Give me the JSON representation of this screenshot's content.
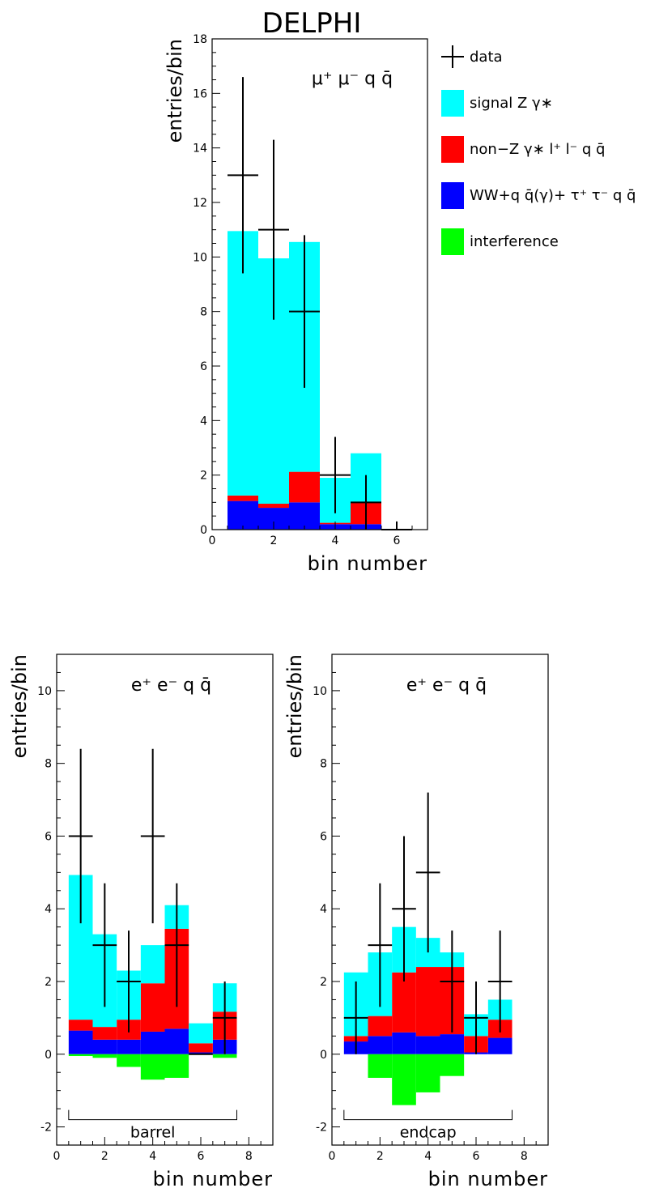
{
  "experiment": "DELPHI",
  "legend": {
    "items": [
      {
        "label": "data",
        "kind": "cross"
      },
      {
        "label": "signal Z γ∗",
        "color": "#00ffff"
      },
      {
        "label": "non−Z γ∗  l⁺ l⁻ q q̄",
        "color": "#ff0000"
      },
      {
        "label": "WW+q q̄(γ)+ τ⁺ τ⁻ q q̄",
        "color": "#0000ff"
      },
      {
        "label": "interference",
        "color": "#00ff00"
      }
    ]
  },
  "colors": {
    "signal": "#00ffff",
    "nonZ": "#ff0000",
    "ww": "#0000ff",
    "interference": "#00ff00"
  },
  "chart_data": [
    {
      "type": "bar",
      "stacked": true,
      "title": "μ⁺ μ⁻ q q̄",
      "xlabel": "bin number",
      "ylabel": "entries/bin",
      "xlim": [
        0,
        7
      ],
      "ylim": [
        0,
        18
      ],
      "xticks": [
        0,
        2,
        4,
        6
      ],
      "yticks": [
        0,
        2,
        4,
        6,
        8,
        10,
        12,
        14,
        16,
        18
      ],
      "bins": [
        1,
        2,
        3,
        4,
        5
      ],
      "series": [
        {
          "key": "ww",
          "values": [
            1.05,
            0.8,
            1.0,
            0.2,
            0.2
          ]
        },
        {
          "key": "nonZ",
          "values": [
            0.2,
            0.15,
            1.12,
            0.05,
            0.78
          ]
        },
        {
          "key": "signal",
          "values": [
            9.7,
            9.0,
            8.43,
            1.65,
            1.82
          ]
        }
      ],
      "interference": [
        0,
        0,
        0,
        0,
        0
      ],
      "data": [
        {
          "x": 1,
          "y": 13,
          "lo": 9.4,
          "hi": 16.6
        },
        {
          "x": 2,
          "y": 11,
          "lo": 7.7,
          "hi": 14.3
        },
        {
          "x": 3,
          "y": 8,
          "lo": 5.2,
          "hi": 10.8
        },
        {
          "x": 4,
          "y": 2,
          "lo": 0.6,
          "hi": 3.4
        },
        {
          "x": 5,
          "y": 1,
          "lo": 0,
          "hi": 2
        },
        {
          "x": 6,
          "y": 0,
          "lo": 0,
          "hi": 0.3
        }
      ],
      "region_label": ""
    },
    {
      "type": "bar",
      "stacked": true,
      "title": "e⁺ e⁻ q q̄",
      "xlabel": "bin number",
      "ylabel": "entries/bin",
      "xlim": [
        0,
        9
      ],
      "ylim": [
        -2.5,
        11
      ],
      "xticks": [
        0,
        2,
        4,
        6,
        8
      ],
      "yticks": [
        -2,
        0,
        2,
        4,
        6,
        8,
        10
      ],
      "bins": [
        1,
        2,
        3,
        4,
        5,
        6,
        7
      ],
      "series": [
        {
          "key": "ww",
          "values": [
            0.65,
            0.4,
            0.4,
            0.62,
            0.7,
            0.05,
            0.4
          ]
        },
        {
          "key": "nonZ",
          "values": [
            0.3,
            0.35,
            0.55,
            1.33,
            2.75,
            0.25,
            0.77
          ]
        },
        {
          "key": "signal",
          "values": [
            3.98,
            2.55,
            1.35,
            1.05,
            0.65,
            0.55,
            0.78
          ]
        }
      ],
      "interference": [
        -0.05,
        -0.1,
        -0.35,
        -0.7,
        -0.65,
        0,
        -0.1
      ],
      "data": [
        {
          "x": 1,
          "y": 6,
          "lo": 3.6,
          "hi": 8.4
        },
        {
          "x": 2,
          "y": 3,
          "lo": 1.3,
          "hi": 4.7
        },
        {
          "x": 3,
          "y": 2,
          "lo": 0.6,
          "hi": 3.4
        },
        {
          "x": 4,
          "y": 6,
          "lo": 3.6,
          "hi": 8.4
        },
        {
          "x": 5,
          "y": 3,
          "lo": 1.3,
          "hi": 4.7
        },
        {
          "x": 6,
          "y": 0,
          "lo": 0,
          "hi": 0
        },
        {
          "x": 7,
          "y": 1,
          "lo": 0,
          "hi": 2
        }
      ],
      "region_label": "barrel"
    },
    {
      "type": "bar",
      "stacked": true,
      "title": "e⁺ e⁻ q q̄",
      "xlabel": "bin number",
      "ylabel": "entries/bin",
      "xlim": [
        0,
        9
      ],
      "ylim": [
        -2.5,
        11
      ],
      "xticks": [
        0,
        2,
        4,
        6,
        8
      ],
      "yticks": [
        -2,
        0,
        2,
        4,
        6,
        8,
        10
      ],
      "bins": [
        1,
        2,
        3,
        4,
        5,
        6,
        7
      ],
      "series": [
        {
          "key": "ww",
          "values": [
            0.35,
            0.5,
            0.6,
            0.5,
            0.55,
            0.05,
            0.45
          ]
        },
        {
          "key": "nonZ",
          "values": [
            0.15,
            0.55,
            1.65,
            1.9,
            1.85,
            0.45,
            0.5
          ]
        },
        {
          "key": "signal",
          "values": [
            1.75,
            1.75,
            1.25,
            0.8,
            0.4,
            0.6,
            0.55
          ]
        }
      ],
      "interference": [
        0,
        -0.65,
        -1.4,
        -1.05,
        -0.6,
        0,
        0
      ],
      "data": [
        {
          "x": 1,
          "y": 1,
          "lo": 0,
          "hi": 2
        },
        {
          "x": 2,
          "y": 3,
          "lo": 1.3,
          "hi": 4.7
        },
        {
          "x": 3,
          "y": 4,
          "lo": 2,
          "hi": 6
        },
        {
          "x": 4,
          "y": 5,
          "lo": 2.8,
          "hi": 7.2
        },
        {
          "x": 5,
          "y": 2,
          "lo": 0.6,
          "hi": 3.4
        },
        {
          "x": 6,
          "y": 1,
          "lo": 0,
          "hi": 2
        },
        {
          "x": 7,
          "y": 2,
          "lo": 0.6,
          "hi": 3.4
        }
      ],
      "region_label": "endcap"
    }
  ]
}
